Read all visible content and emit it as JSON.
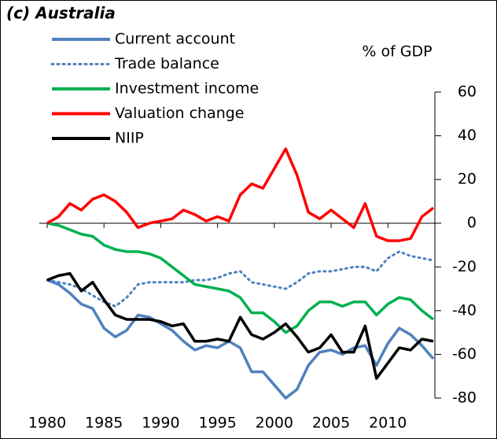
{
  "chart_data": {
    "type": "line",
    "title": "(c) Australia",
    "y_label": "% of GDP",
    "x": [
      1980,
      1981,
      1982,
      1983,
      1984,
      1985,
      1986,
      1987,
      1988,
      1989,
      1990,
      1991,
      1992,
      1993,
      1994,
      1995,
      1996,
      1997,
      1998,
      1999,
      2000,
      2001,
      2002,
      2003,
      2004,
      2005,
      2006,
      2007,
      2008,
      2009,
      2010,
      2011,
      2012,
      2013,
      2014
    ],
    "xlim": [
      1980,
      2014
    ],
    "xticks": [
      1980,
      1985,
      1990,
      1995,
      2000,
      2005,
      2010
    ],
    "ylim": [
      -80,
      60
    ],
    "yticks": [
      -80,
      -60,
      -40,
      -20,
      0,
      20,
      40,
      60
    ],
    "y_axis_side": "right",
    "series": [
      {
        "name": "Current account",
        "color": "#4f81bd",
        "line_style": "solid",
        "values": [
          -26,
          -28,
          -32,
          -37,
          -39,
          -48,
          -52,
          -49,
          -42,
          -43,
          -46,
          -49,
          -54,
          -58,
          -56,
          -57,
          -54,
          -57,
          -68,
          -68,
          -74,
          -80,
          -76,
          -65,
          -59,
          -58,
          -60,
          -57,
          -56,
          -65,
          -55,
          -48,
          -51,
          -56,
          -62
        ]
      },
      {
        "name": "Trade balance",
        "color": "#4f81bd",
        "line_style": "dotted",
        "values": [
          -26,
          -27,
          -28,
          -30,
          -33,
          -36,
          -38,
          -34,
          -28,
          -27,
          -27,
          -27,
          -27,
          -26,
          -26,
          -25,
          -23,
          -22,
          -27,
          -28,
          -29,
          -30,
          -27,
          -23,
          -22,
          -22,
          -21,
          -20,
          -20,
          -22,
          -16,
          -13,
          -15,
          -16,
          -17
        ]
      },
      {
        "name": "Investment income",
        "color": "#00b050",
        "line_style": "solid",
        "values": [
          0,
          -1,
          -3,
          -5,
          -6,
          -10,
          -12,
          -13,
          -13,
          -14,
          -16,
          -20,
          -24,
          -28,
          -29,
          -30,
          -31,
          -34,
          -41,
          -41,
          -45,
          -50,
          -47,
          -40,
          -36,
          -36,
          -38,
          -36,
          -36,
          -42,
          -37,
          -34,
          -35,
          -40,
          -44
        ]
      },
      {
        "name": "Valuation change",
        "color": "#ff0000",
        "line_style": "solid",
        "values": [
          0,
          3,
          9,
          6,
          11,
          13,
          10,
          5,
          -2,
          0,
          1,
          2,
          6,
          4,
          1,
          3,
          1,
          13,
          18,
          16,
          25,
          34,
          22,
          5,
          2,
          6,
          2,
          -2,
          9,
          -6,
          -8,
          -8,
          -7,
          3,
          7
        ]
      },
      {
        "name": "NIIP",
        "color": "#000000",
        "line_style": "solid",
        "values": [
          -26,
          -24,
          -23,
          -31,
          -27,
          -35,
          -42,
          -44,
          -44,
          -44,
          -45,
          -47,
          -46,
          -54,
          -54,
          -53,
          -54,
          -43,
          -51,
          -53,
          -50,
          -46,
          -52,
          -59,
          -57,
          -51,
          -59,
          -59,
          -47,
          -71,
          -64,
          -57,
          -58,
          -53,
          -54
        ]
      }
    ]
  }
}
